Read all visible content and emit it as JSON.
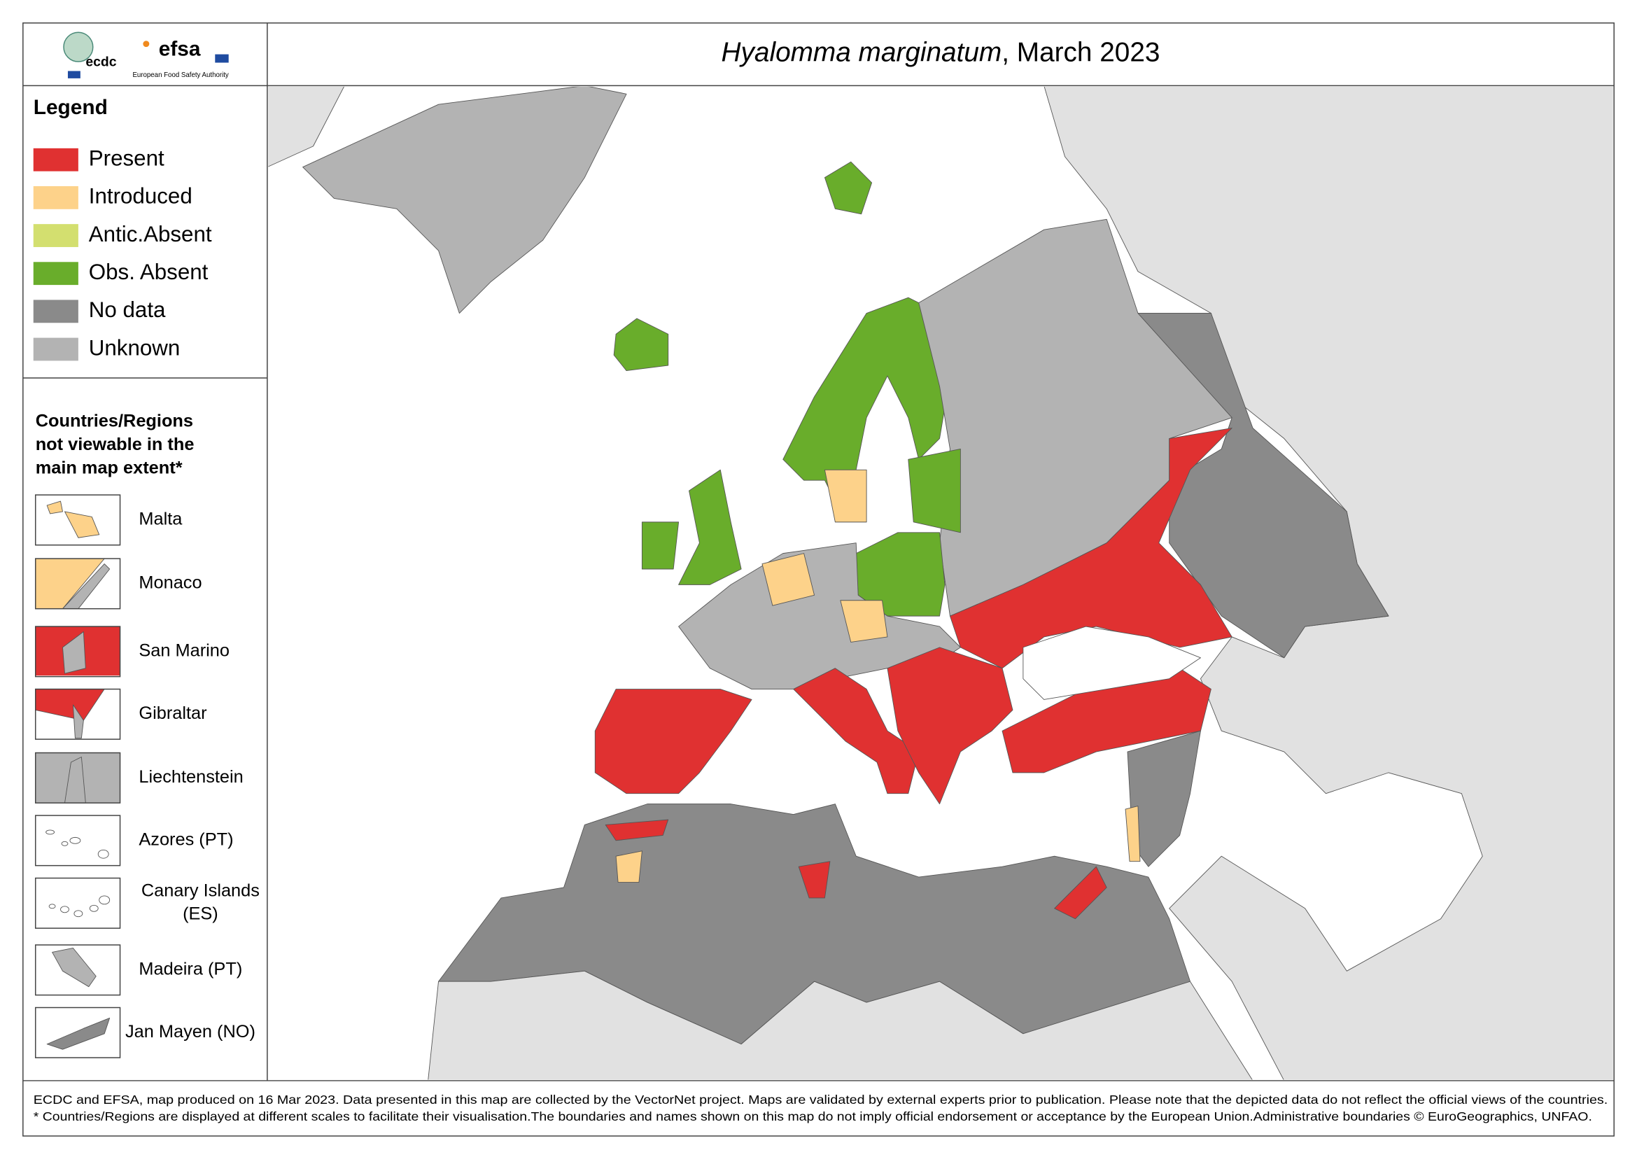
{
  "header": {
    "title_species": "Hyalomma marginatum",
    "title_rest": ", March 2023",
    "logo_left": "ecdc",
    "logo_right": "efsa",
    "logo_right_caption": "European Food Safety Authority"
  },
  "legend": {
    "title": "Legend",
    "items": [
      {
        "label": "Present",
        "color": "#e03131"
      },
      {
        "label": "Introduced",
        "color": "#fdd28a"
      },
      {
        "label": "Antic.Absent",
        "color": "#d3df6f"
      },
      {
        "label": "Obs. Absent",
        "color": "#69ad2b"
      },
      {
        "label": "No data",
        "color": "#8a8a8a"
      },
      {
        "label": "Unknown",
        "color": "#b3b3b3"
      }
    ]
  },
  "insets": {
    "heading": [
      "Countries/Regions",
      "not viewable in the",
      "main map extent*"
    ],
    "items": [
      {
        "lines": [
          "Malta"
        ]
      },
      {
        "lines": [
          "Monaco"
        ]
      },
      {
        "lines": [
          "San Marino"
        ]
      },
      {
        "lines": [
          "Gibraltar"
        ]
      },
      {
        "lines": [
          "Liechtenstein"
        ]
      },
      {
        "lines": [
          "Azores (PT)"
        ]
      },
      {
        "lines": [
          "Canary Islands",
          "(ES)"
        ]
      },
      {
        "lines": [
          "Madeira (PT)"
        ]
      },
      {
        "lines": [
          "Jan Mayen (NO)"
        ]
      }
    ]
  },
  "footer": [
    "ECDC and EFSA, map produced on 16 Mar 2023. Data presented in this map are collected by the VectorNet project. Maps are validated by external experts prior to publication. Please note that the depicted data do not reflect the official views of the countries.",
    "* Countries/Regions are displayed at different scales to facilitate their visualisation.The boundaries and names shown on this map do not imply official endorsement or acceptance by the European Union.Administrative boundaries © EuroGeographics, UNFAO."
  ]
}
